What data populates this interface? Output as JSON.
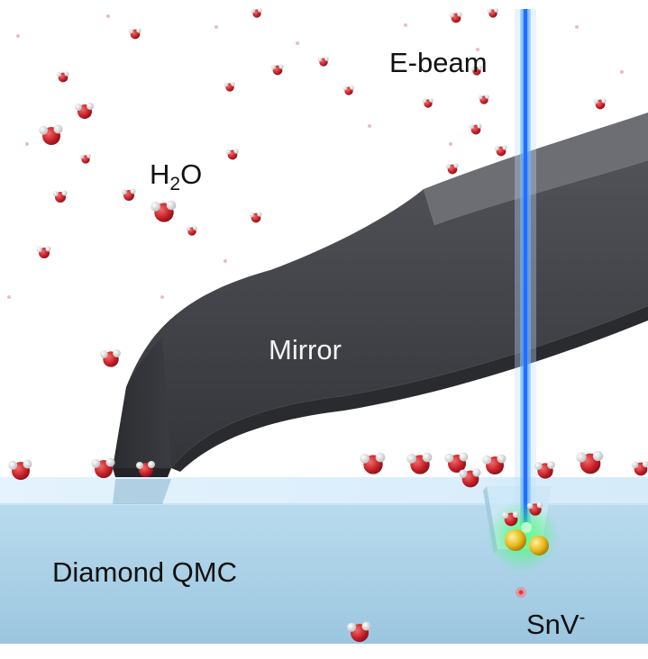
{
  "labels": {
    "ebeam": "E-beam",
    "water_base": "H",
    "water_sub": "2",
    "water_tail": "O",
    "mirror": "Mirror",
    "diamond": "Diamond QMC",
    "center_base": "SnV",
    "center_sup": "-"
  },
  "icons": {
    "water_molecule": "water-molecule-icon",
    "tin_atom": "tin-atom-icon",
    "electron_beam": "electron-beam-icon"
  },
  "colors": {
    "oxygen": "#c8232a",
    "hydrogen": "#e8e8e8",
    "diamond_top": "#dcefff",
    "diamond_front": "#a8cfe6",
    "mirror_body": "#3f4045",
    "beam": "#5aa8ff",
    "tin": "#e8b81a",
    "glow": "#3cff6a"
  }
}
